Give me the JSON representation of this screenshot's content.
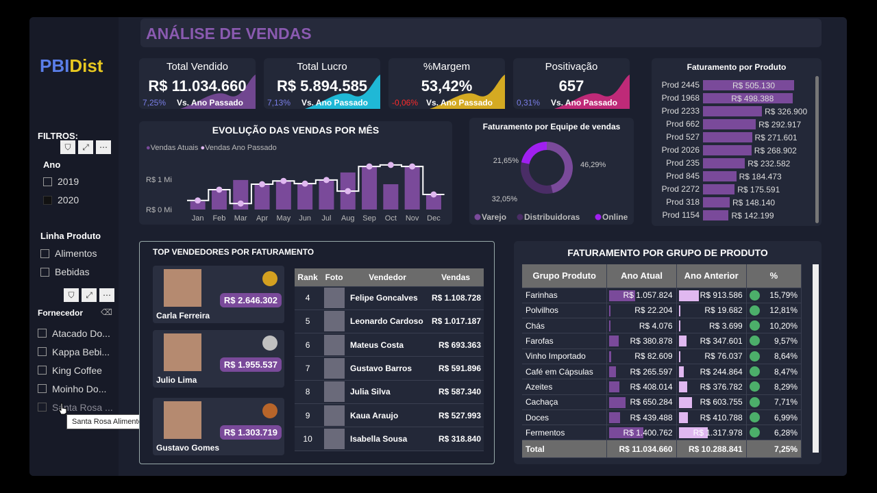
{
  "title": "ANÁLISE DE VENDAS",
  "logo": {
    "a": "PBI",
    "b": "Dist"
  },
  "filters": {
    "label": "FILTROS:",
    "ano_label": "Ano",
    "anos": [
      "2019",
      "2020"
    ],
    "linha_label": "Linha Produto",
    "linhas": [
      "Alimentos",
      "Bebidas"
    ],
    "fornecedor_label": "Fornecedor",
    "fornecedores": [
      "Atacado Do...",
      "Kappa Bebi...",
      "King Coffee",
      "Moinho Do...",
      "Santa Rosa ..."
    ],
    "tooltip": "Santa Rosa Alimentos"
  },
  "kpis": [
    {
      "title": "Total Vendido",
      "value": "R$ 11.034.660",
      "pct": "7,25%",
      "vs": "Vs. Ano Passado",
      "color": "#7a4a9a",
      "pct_color": "#7a7ee8"
    },
    {
      "title": "Total Lucro",
      "value": "R$ 5.894.585",
      "pct": "7,13%",
      "vs": "Vs. Ano Passado",
      "color": "#1fc8e8",
      "pct_color": "#7a7ee8"
    },
    {
      "title": "%Margem",
      "value": "53,42%",
      "pct": "-0,06%",
      "vs": "Vs. Ano Passado",
      "color": "#e8b820",
      "pct_color": "#ff2a2a"
    },
    {
      "title": "Positivação",
      "value": "657",
      "pct": "0,31%",
      "vs": "Vs. Ano Passado",
      "color": "#d02a80",
      "pct_color": "#7a7ee8"
    }
  ],
  "chart_data": [
    {
      "type": "bar",
      "title": "EVOLUÇÃO DAS VENDAS POR MÊS",
      "categories": [
        "Jan",
        "Feb",
        "Mar",
        "Apr",
        "May",
        "Jun",
        "Jul",
        "Aug",
        "Sep",
        "Oct",
        "Nov",
        "Dec"
      ],
      "series": [
        {
          "name": "Vendas Atuais",
          "values": [
            0.27,
            0.68,
            0.98,
            0.82,
            0.95,
            0.86,
            0.98,
            1.23,
            1.43,
            0.84,
            1.45,
            0.5
          ],
          "color": "#7a4a9a"
        },
        {
          "name": "Vendas Ano Passado",
          "values": [
            0.3,
            0.66,
            0.2,
            0.84,
            0.95,
            0.86,
            0.98,
            0.61,
            1.43,
            1.48,
            1.43,
            0.5
          ],
          "color": "#e0b8f0"
        }
      ],
      "yticks": [
        "R$ 0 Mi",
        "R$ 1 Mi"
      ],
      "ylim": [
        0,
        1.6
      ]
    },
    {
      "type": "pie",
      "title": "Faturamento por Equipe de vendas",
      "labels": [
        "Varejo",
        "Distribuidoras",
        "Online"
      ],
      "values": [
        46.29,
        32.05,
        21.65
      ],
      "value_labels": [
        "46,29%",
        "32,05%",
        "21,65%"
      ],
      "colors": [
        "#7a4a9a",
        "#4a2d66",
        "#a020f0"
      ]
    },
    {
      "type": "bar",
      "title": "Faturamento por Produto",
      "categories": [
        "Prod 2445",
        "Prod 1968",
        "Prod 2233",
        "Prod 662",
        "Prod 527",
        "Prod 2026",
        "Prod 235",
        "Prod 845",
        "Prod 2272",
        "Prod 318",
        "Prod 1154"
      ],
      "values": [
        505130,
        498388,
        326900,
        292917,
        271601,
        268902,
        232582,
        184473,
        175591,
        148140,
        142199
      ],
      "value_labels": [
        "R$ 505.130",
        "R$ 498.388",
        "R$ 326.900",
        "R$ 292.917",
        "R$ 271.601",
        "R$ 268.902",
        "R$ 232.582",
        "R$ 184.473",
        "R$ 175.591",
        "R$ 148.140",
        "R$ 142.199"
      ]
    }
  ],
  "top": {
    "title": "TOP VENDEDORES POR FATURAMENTO",
    "podium": [
      {
        "name": "Carla Ferreira",
        "value": "R$ 2.646.302",
        "medal": "#d4a020"
      },
      {
        "name": "Julio Lima",
        "value": "R$ 1.955.537",
        "medal": "#c0c0c0"
      },
      {
        "name": "Gustavo Gomes",
        "value": "R$ 1.303.719",
        "medal": "#b8652a"
      }
    ],
    "headers": [
      "Rank",
      "Foto",
      "Vendedor",
      "Vendas"
    ],
    "rows": [
      [
        "4",
        "Felipe Goncalves",
        "R$ 1.108.728"
      ],
      [
        "5",
        "Leonardo Cardoso",
        "R$ 1.017.187"
      ],
      [
        "6",
        "Mateus Costa",
        "R$ 693.363"
      ],
      [
        "7",
        "Gustavo Barros",
        "R$ 591.896"
      ],
      [
        "8",
        "Julia Silva",
        "R$ 587.340"
      ],
      [
        "9",
        "Kaua Araujo",
        "R$ 527.993"
      ],
      [
        "10",
        "Isabella Sousa",
        "R$ 318.840"
      ]
    ]
  },
  "grupo": {
    "title": "FATURAMENTO POR GRUPO DE PRODUTO",
    "headers": [
      "Grupo Produto",
      "Ano Atual",
      "Ano Anterior",
      "%"
    ],
    "rows": [
      [
        "Farinhas",
        "R$ 1.057.824",
        "R$ 913.586",
        "15,79%",
        1057824,
        913586
      ],
      [
        "Polvilhos",
        "R$ 22.204",
        "R$ 19.682",
        "12,81%",
        22204,
        19682
      ],
      [
        "Chás",
        "R$ 4.076",
        "R$ 3.699",
        "10,20%",
        4076,
        3699
      ],
      [
        "Farofas",
        "R$ 380.878",
        "R$ 347.601",
        "9,57%",
        380878,
        347601
      ],
      [
        "Vinho Importado",
        "R$ 82.609",
        "R$ 76.037",
        "8,64%",
        82609,
        76037
      ],
      [
        "Café em Cápsulas",
        "R$ 265.597",
        "R$ 244.864",
        "8,47%",
        265597,
        244864
      ],
      [
        "Azeites",
        "R$ 408.014",
        "R$ 376.782",
        "8,29%",
        408014,
        376782
      ],
      [
        "Cachaça",
        "R$ 650.284",
        "R$ 603.755",
        "7,71%",
        650284,
        603755
      ],
      [
        "Doces",
        "R$ 439.488",
        "R$ 410.788",
        "6,99%",
        439488,
        410788
      ],
      [
        "Fermentos",
        "R$ 1.400.762",
        "R$ 1.317.978",
        "6,28%",
        1400762,
        1317978
      ]
    ],
    "total": [
      "Total",
      "R$ 11.034.660",
      "R$ 10.288.841",
      "7,25%"
    ],
    "status_color": "#4caf6a"
  }
}
